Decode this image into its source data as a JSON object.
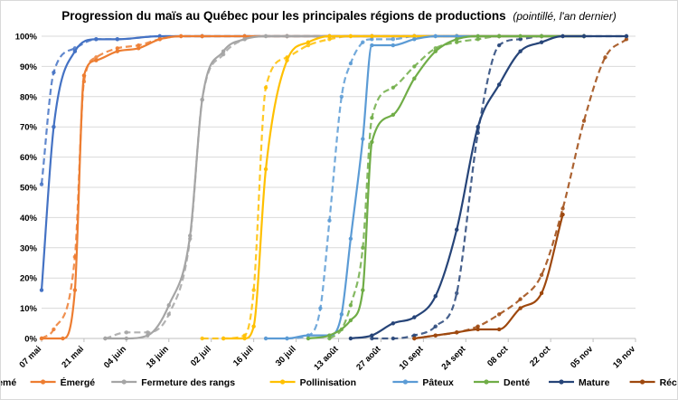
{
  "chart_data": {
    "type": "line",
    "title": "Progression du maïs au Québec pour les principales régions de productions",
    "subtitle": "(pointillé, l'an dernier)",
    "x_ticks": [
      "07 mai",
      "21 mai",
      "04 juin",
      "18 juin",
      "02 juil",
      "16 juil",
      "30 juil",
      "13 août",
      "27 août",
      "10 sept",
      "24 sept",
      "08 oct",
      "22 oct",
      "05 nov",
      "19 nov"
    ],
    "y_ticks": [
      "0%",
      "10%",
      "20%",
      "30%",
      "40%",
      "50%",
      "60%",
      "70%",
      "80%",
      "90%",
      "100%"
    ],
    "ylim": [
      0,
      100
    ],
    "xlim_days": [
      0,
      196
    ],
    "grid": true,
    "legend_position": "bottom",
    "series": [
      {
        "name": "Semé",
        "color": "#4472C4",
        "current": [
          [
            0,
            16
          ],
          [
            4,
            70
          ],
          [
            11,
            95
          ],
          [
            18,
            99
          ],
          [
            25,
            99
          ],
          [
            39,
            100
          ],
          [
            53,
            100
          ],
          [
            67,
            100
          ],
          [
            81,
            100
          ],
          [
            95,
            100
          ],
          [
            109,
            100
          ],
          [
            123,
            100
          ],
          [
            137,
            100
          ],
          [
            151,
            100
          ],
          [
            165,
            100
          ],
          [
            179,
            100
          ]
        ],
        "previous": [
          [
            0,
            51
          ],
          [
            4,
            88
          ],
          [
            11,
            96
          ],
          [
            18,
            99
          ],
          [
            25,
            99
          ],
          [
            39,
            100
          ],
          [
            53,
            100
          ],
          [
            67,
            100
          ],
          [
            81,
            100
          ],
          [
            95,
            100
          ],
          [
            109,
            100
          ],
          [
            123,
            100
          ],
          [
            137,
            100
          ],
          [
            151,
            100
          ],
          [
            165,
            100
          ],
          [
            179,
            100
          ]
        ]
      },
      {
        "name": "Émergé",
        "color": "#ED7D31",
        "current": [
          [
            0,
            0
          ],
          [
            7,
            0
          ],
          [
            11,
            16
          ],
          [
            14,
            87
          ],
          [
            18,
            92
          ],
          [
            25,
            95
          ],
          [
            32,
            96
          ],
          [
            39,
            99
          ],
          [
            46,
            100
          ],
          [
            53,
            100
          ],
          [
            67,
            100
          ],
          [
            81,
            100
          ],
          [
            95,
            100
          ],
          [
            109,
            100
          ],
          [
            123,
            100
          ],
          [
            137,
            100
          ],
          [
            151,
            100
          ],
          [
            165,
            100
          ],
          [
            179,
            100
          ]
        ],
        "previous": [
          [
            0,
            0
          ],
          [
            4,
            3
          ],
          [
            11,
            27
          ],
          [
            14,
            85
          ],
          [
            18,
            93
          ],
          [
            25,
            96
          ],
          [
            32,
            97
          ],
          [
            39,
            99
          ],
          [
            46,
            100
          ],
          [
            53,
            100
          ],
          [
            67,
            100
          ],
          [
            81,
            100
          ],
          [
            95,
            100
          ],
          [
            109,
            100
          ],
          [
            123,
            100
          ],
          [
            137,
            100
          ],
          [
            151,
            100
          ],
          [
            165,
            100
          ],
          [
            179,
            100
          ]
        ]
      },
      {
        "name": "Fermeture des rangs",
        "color": "#A5A5A5",
        "current": [
          [
            21,
            0
          ],
          [
            28,
            0
          ],
          [
            35,
            1
          ],
          [
            42,
            11
          ],
          [
            49,
            34
          ],
          [
            53,
            79
          ],
          [
            60,
            95
          ],
          [
            67,
            99
          ],
          [
            74,
            100
          ],
          [
            81,
            100
          ],
          [
            95,
            100
          ],
          [
            109,
            100
          ],
          [
            123,
            100
          ],
          [
            137,
            100
          ],
          [
            151,
            100
          ],
          [
            165,
            100
          ],
          [
            179,
            100
          ]
        ],
        "previous": [
          [
            21,
            0
          ],
          [
            28,
            2
          ],
          [
            35,
            2
          ],
          [
            42,
            8
          ],
          [
            49,
            33
          ],
          [
            53,
            79
          ],
          [
            60,
            94
          ],
          [
            67,
            99
          ],
          [
            74,
            100
          ],
          [
            81,
            100
          ],
          [
            95,
            100
          ],
          [
            109,
            100
          ],
          [
            123,
            100
          ],
          [
            137,
            100
          ],
          [
            151,
            100
          ],
          [
            165,
            100
          ],
          [
            179,
            100
          ]
        ]
      },
      {
        "name": "Pollinisation",
        "color": "#FFC000",
        "current": [
          [
            60,
            0
          ],
          [
            67,
            0
          ],
          [
            70,
            4
          ],
          [
            74,
            56
          ],
          [
            81,
            92
          ],
          [
            88,
            98
          ],
          [
            95,
            100
          ],
          [
            102,
            100
          ],
          [
            109,
            100
          ],
          [
            123,
            100
          ],
          [
            137,
            100
          ],
          [
            151,
            100
          ],
          [
            165,
            100
          ],
          [
            179,
            100
          ]
        ],
        "previous": [
          [
            53,
            0
          ],
          [
            60,
            0
          ],
          [
            67,
            1
          ],
          [
            70,
            16
          ],
          [
            74,
            83
          ],
          [
            81,
            93
          ],
          [
            88,
            97
          ],
          [
            95,
            99
          ],
          [
            102,
            100
          ],
          [
            109,
            100
          ],
          [
            123,
            100
          ],
          [
            137,
            100
          ],
          [
            151,
            100
          ],
          [
            165,
            100
          ],
          [
            179,
            100
          ]
        ]
      },
      {
        "name": "Pâteux",
        "color": "#5B9BD5",
        "current": [
          [
            74,
            0
          ],
          [
            81,
            0
          ],
          [
            88,
            1
          ],
          [
            95,
            1
          ],
          [
            99,
            8
          ],
          [
            102,
            33
          ],
          [
            106,
            66
          ],
          [
            109,
            97
          ],
          [
            116,
            97
          ],
          [
            123,
            99
          ],
          [
            130,
            100
          ],
          [
            137,
            100
          ],
          [
            144,
            100
          ],
          [
            151,
            100
          ],
          [
            165,
            100
          ],
          [
            179,
            100
          ]
        ],
        "previous": [
          [
            81,
            0
          ],
          [
            88,
            1
          ],
          [
            92,
            10
          ],
          [
            95,
            39
          ],
          [
            99,
            80
          ],
          [
            102,
            91
          ],
          [
            106,
            98
          ],
          [
            109,
            99
          ],
          [
            116,
            99
          ],
          [
            123,
            100
          ],
          [
            130,
            100
          ],
          [
            137,
            100
          ],
          [
            151,
            100
          ],
          [
            165,
            100
          ],
          [
            179,
            100
          ]
        ]
      },
      {
        "name": "Denté",
        "color": "#70AD47",
        "current": [
          [
            88,
            0
          ],
          [
            95,
            1
          ],
          [
            102,
            6
          ],
          [
            106,
            16
          ],
          [
            109,
            65
          ],
          [
            116,
            74
          ],
          [
            123,
            86
          ],
          [
            130,
            95
          ],
          [
            137,
            99
          ],
          [
            144,
            100
          ],
          [
            151,
            100
          ],
          [
            158,
            100
          ],
          [
            165,
            100
          ],
          [
            179,
            100
          ]
        ],
        "previous": [
          [
            95,
            0
          ],
          [
            99,
            3
          ],
          [
            102,
            11
          ],
          [
            106,
            30
          ],
          [
            109,
            73
          ],
          [
            116,
            83
          ],
          [
            123,
            90
          ],
          [
            130,
            96
          ],
          [
            137,
            98
          ],
          [
            144,
            99
          ],
          [
            151,
            100
          ],
          [
            158,
            100
          ],
          [
            165,
            100
          ],
          [
            179,
            100
          ]
        ]
      },
      {
        "name": "Mature",
        "color": "#264478",
        "current": [
          [
            102,
            0
          ],
          [
            109,
            1
          ],
          [
            116,
            5
          ],
          [
            123,
            7
          ],
          [
            130,
            14
          ],
          [
            137,
            36
          ],
          [
            144,
            70
          ],
          [
            151,
            84
          ],
          [
            158,
            95
          ],
          [
            165,
            98
          ],
          [
            172,
            100
          ],
          [
            179,
            100
          ],
          [
            193,
            100
          ]
        ],
        "previous": [
          [
            109,
            0
          ],
          [
            116,
            0
          ],
          [
            123,
            1
          ],
          [
            130,
            4
          ],
          [
            137,
            15
          ],
          [
            144,
            68
          ],
          [
            151,
            97
          ],
          [
            158,
            99
          ],
          [
            165,
            100
          ],
          [
            172,
            100
          ],
          [
            179,
            100
          ],
          [
            193,
            100
          ]
        ]
      },
      {
        "name": "Récolte",
        "color": "#9E480E",
        "current": [
          [
            123,
            0
          ],
          [
            130,
            1
          ],
          [
            137,
            2
          ],
          [
            144,
            3
          ],
          [
            151,
            3
          ],
          [
            158,
            10
          ],
          [
            165,
            15
          ],
          [
            172,
            41
          ]
        ],
        "previous": [
          [
            123,
            0
          ],
          [
            130,
            1
          ],
          [
            137,
            2
          ],
          [
            144,
            4
          ],
          [
            151,
            8
          ],
          [
            158,
            13
          ],
          [
            165,
            21
          ],
          [
            172,
            43
          ],
          [
            179,
            72
          ],
          [
            186,
            93
          ],
          [
            193,
            99
          ]
        ]
      }
    ]
  }
}
